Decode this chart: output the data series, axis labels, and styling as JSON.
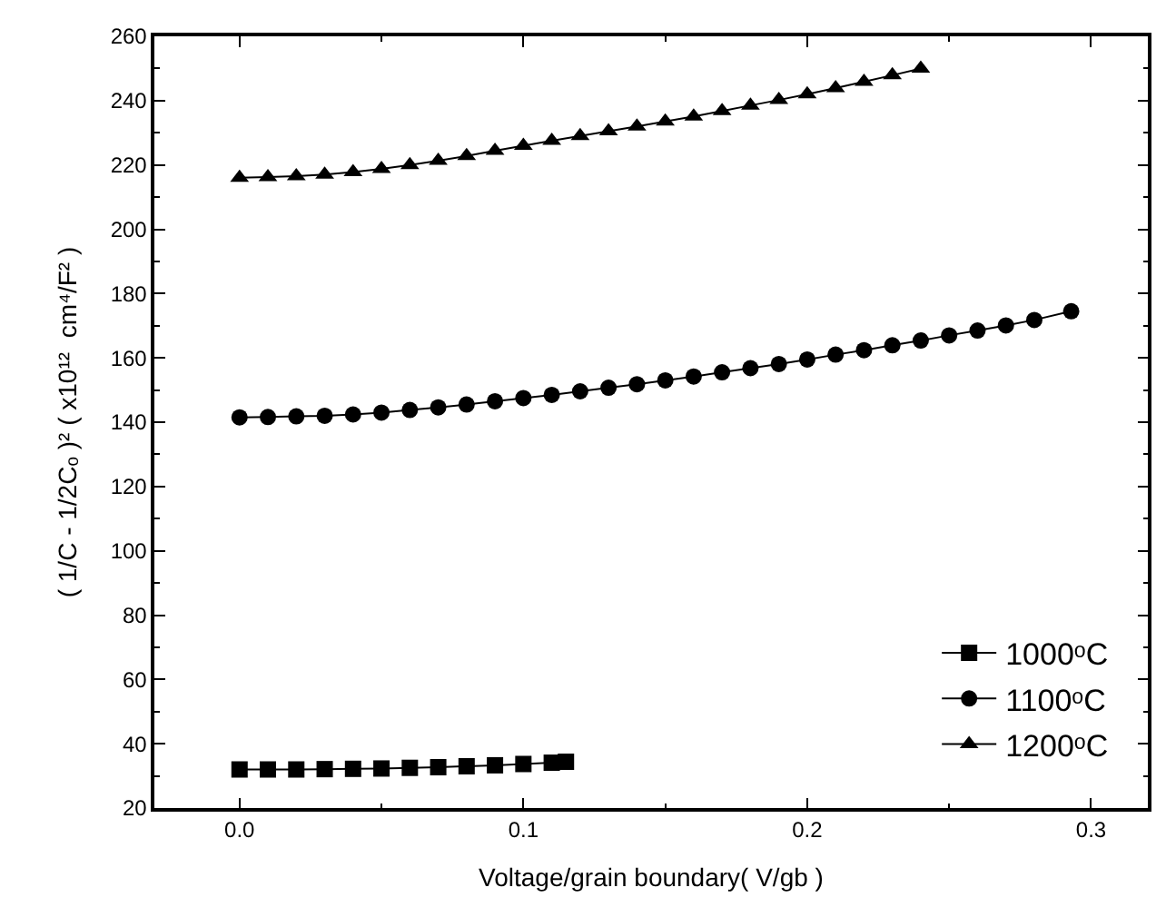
{
  "chart_data": {
    "type": "line",
    "xlabel": "Voltage/grain boundary( V/gb )",
    "ylabel": "( 1/C - 1/2Cₒ )² ( x10¹²  cm⁴/F² )",
    "xlim": [
      -0.03,
      0.32
    ],
    "xticks": [
      {
        "value": 0,
        "label": "0.0"
      },
      0.1,
      0.2,
      0.3
    ],
    "ylim": [
      20,
      260
    ],
    "yticks": [
      20,
      40,
      60,
      80,
      100,
      120,
      140,
      160,
      180,
      200,
      220,
      240,
      260
    ],
    "legend": "bottom right",
    "line_style": "solid",
    "series": [
      {
        "name": "1000ᵒC",
        "color": "#000000",
        "marker": "square",
        "x": [
          0,
          0.01,
          0.02,
          0.03,
          0.04,
          0.05,
          0.06,
          0.07,
          0.08,
          0.09,
          0.1,
          0.11,
          0.115
        ],
        "values": [
          32,
          32,
          32,
          32.1,
          32.2,
          32.3,
          32.5,
          32.7,
          33,
          33.3,
          33.7,
          34.1,
          34.4
        ]
      },
      {
        "name": "1100ᵒC",
        "color": "#000000",
        "marker": "circle",
        "x": [
          0,
          0.01,
          0.02,
          0.03,
          0.04,
          0.05,
          0.06,
          0.07,
          0.08,
          0.09,
          0.1,
          0.11,
          0.12,
          0.13,
          0.14,
          0.15,
          0.16,
          0.17,
          0.18,
          0.19,
          0.2,
          0.21,
          0.22,
          0.23,
          0.24,
          0.25,
          0.26,
          0.27,
          0.28,
          0.293
        ],
        "values": [
          141.5,
          141.6,
          141.8,
          142,
          142.4,
          143,
          143.8,
          144.6,
          145.5,
          146.5,
          147.5,
          148.5,
          149.6,
          150.7,
          151.8,
          153,
          154.2,
          155.5,
          156.8,
          158.1,
          159.5,
          161,
          162.4,
          163.9,
          165.4,
          167,
          168.5,
          170.1,
          171.8,
          174.5
        ]
      },
      {
        "name": "1200ᵒC",
        "color": "#000000",
        "marker": "triangle",
        "x": [
          0,
          0.01,
          0.02,
          0.03,
          0.04,
          0.05,
          0.06,
          0.07,
          0.08,
          0.09,
          0.1,
          0.11,
          0.12,
          0.13,
          0.14,
          0.15,
          0.16,
          0.17,
          0.18,
          0.19,
          0.2,
          0.21,
          0.22,
          0.23,
          0.24
        ],
        "values": [
          216,
          216.2,
          216.5,
          217,
          217.8,
          218.8,
          220,
          221.3,
          222.8,
          224.4,
          226,
          227.5,
          229,
          230.5,
          232,
          233.5,
          235.1,
          236.8,
          238.5,
          240.2,
          242,
          243.9,
          245.9,
          247.9,
          250
        ]
      }
    ]
  }
}
